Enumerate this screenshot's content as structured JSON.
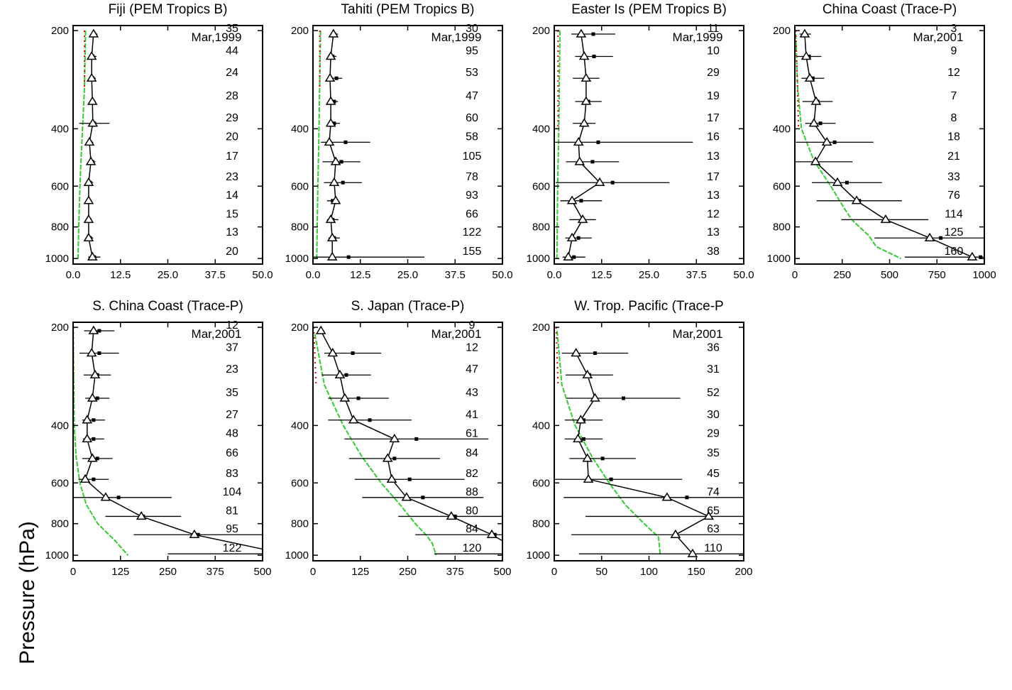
{
  "y_label": "Pressure (hPa)",
  "chart_data": [
    {
      "type": "profile",
      "title": "Fiji (PEM Tropics B)",
      "date": "Mar,1999",
      "log_y": true,
      "ylim": [
        193,
        1040
      ],
      "yticks": [
        200,
        400,
        600,
        800,
        1000
      ],
      "xlim": [
        0,
        50
      ],
      "xticks": [
        {
          "value": 0,
          "label": "0.0"
        },
        {
          "value": 12.5,
          "label": "12.5"
        },
        {
          "value": 25,
          "label": "25.0"
        },
        {
          "value": 37.5,
          "label": "37.5"
        },
        {
          "value": 50,
          "label": "50.0"
        }
      ],
      "levels": [
        205,
        240,
        280,
        330,
        385,
        440,
        505,
        585,
        665,
        760,
        865,
        990
      ],
      "median": [
        5.4,
        4.9,
        4.9,
        5.1,
        5.2,
        4.3,
        4.7,
        4.1,
        4.1,
        4.1,
        4.1,
        5.1
      ],
      "mean": [
        5.6,
        5.2,
        5.2,
        5.2,
        5.6,
        4.5,
        5.1,
        4.5,
        4.3,
        4.3,
        4.5,
        5.6
      ],
      "std": [
        0.8,
        1,
        0.8,
        0.8,
        4,
        0.8,
        0.8,
        0.8,
        0.6,
        0.6,
        0.8,
        1.6
      ],
      "counts": [
        35,
        44,
        24,
        28,
        29,
        20,
        17,
        23,
        14,
        15,
        13,
        20
      ],
      "green": {
        "color": "#33cc33",
        "pressure": [
          200,
          300,
          400,
          500,
          600,
          800,
          1000
        ],
        "values": [
          3.3,
          3,
          2.5,
          2.1,
          1.8,
          1.5,
          1.3
        ]
      },
      "red": {
        "color": "#e00000",
        "pressure": [
          200,
          300
        ],
        "values": [
          3,
          3
        ]
      }
    },
    {
      "type": "profile",
      "title": "Tahiti (PEM Tropics B)",
      "date": "Mar,1999",
      "log_y": true,
      "ylim": [
        193,
        1040
      ],
      "yticks": [
        200,
        400,
        600,
        800,
        1000
      ],
      "xlim": [
        0,
        50
      ],
      "xticks": [
        {
          "value": 0,
          "label": "0.0"
        },
        {
          "value": 12.5,
          "label": "12.5"
        },
        {
          "value": 25,
          "label": "25.0"
        },
        {
          "value": 37.5,
          "label": "37.5"
        },
        {
          "value": 50,
          "label": "50.0"
        }
      ],
      "levels": [
        205,
        240,
        280,
        330,
        385,
        440,
        505,
        585,
        665,
        760,
        865,
        990
      ],
      "median": [
        5.4,
        4.7,
        4.5,
        4.7,
        4.7,
        4.3,
        6,
        5.6,
        6,
        4.7,
        5.1,
        5.1
      ],
      "mean": [
        5.6,
        5.2,
        6.2,
        5.6,
        5.6,
        8.6,
        7.5,
        7.9,
        5.2,
        5.2,
        5.6,
        9.4
      ],
      "std": [
        1,
        1,
        1.5,
        1,
        1.5,
        6.5,
        5,
        5,
        1.5,
        1.5,
        1.5,
        20
      ],
      "counts": [
        30,
        95,
        53,
        47,
        60,
        58,
        105,
        78,
        93,
        66,
        122,
        155
      ],
      "green": {
        "color": "#33cc33",
        "pressure": [
          200,
          400,
          600,
          1000
        ],
        "values": [
          2,
          1.6,
          1.3,
          1
        ]
      },
      "red": {
        "color": "#e00000",
        "pressure": [
          200,
          300
        ],
        "values": [
          1.8,
          1.8
        ]
      }
    },
    {
      "type": "profile",
      "title": "Easter Is (PEM Tropics B)",
      "date": "Mar,1999",
      "log_y": true,
      "ylim": [
        193,
        1040
      ],
      "yticks": [
        200,
        400,
        600,
        800,
        1000
      ],
      "xlim": [
        0,
        50
      ],
      "xticks": [
        {
          "value": 0,
          "label": "0.0"
        },
        {
          "value": 12.5,
          "label": "12.5"
        },
        {
          "value": 25,
          "label": "25.0"
        },
        {
          "value": 37.5,
          "label": "37.5"
        },
        {
          "value": 50,
          "label": "50.0"
        }
      ],
      "levels": [
        205,
        240,
        280,
        330,
        385,
        440,
        505,
        585,
        665,
        760,
        865,
        990
      ],
      "median": [
        7.1,
        7.9,
        8.4,
        8.4,
        7.9,
        6.4,
        6.7,
        12,
        4.7,
        7.5,
        4.7,
        3.7
      ],
      "mean": [
        10.3,
        10.5,
        8.4,
        9,
        7.9,
        11.6,
        10.1,
        15.4,
        7.1,
        7.5,
        6.4,
        5.2
      ],
      "std": [
        5.8,
        5,
        3.5,
        3.5,
        3,
        25,
        7,
        15,
        5.5,
        3.5,
        3.5,
        3
      ],
      "counts": [
        11,
        10,
        29,
        19,
        17,
        16,
        13,
        17,
        13,
        12,
        13,
        38
      ],
      "green": {
        "color": "#33cc33",
        "pressure": [
          200,
          400,
          600,
          1000
        ],
        "values": [
          1.5,
          1.2,
          0.9,
          0.7
        ]
      },
      "red": {
        "color": "#e00000",
        "pressure": [
          200,
          400
        ],
        "values": [
          1,
          1
        ]
      }
    },
    {
      "type": "profile",
      "title": "China Coast (Trace-P)",
      "date": "Mar,2001",
      "log_y": true,
      "ylim": [
        193,
        1040
      ],
      "yticks": [
        200,
        400,
        600,
        800,
        1000
      ],
      "xlim": [
        0,
        1000
      ],
      "xticks": [
        0,
        250,
        500,
        750,
        1000
      ],
      "levels": [
        205,
        240,
        280,
        330,
        385,
        440,
        505,
        585,
        665,
        760,
        865,
        990
      ],
      "median": [
        52,
        60,
        79,
        112,
        101,
        169,
        109,
        225,
        326,
        479,
        712,
        936
      ],
      "mean": [
        55,
        75,
        95,
        120,
        135,
        210,
        105,
        275,
        340,
        475,
        770,
        980
      ],
      "std": [
        30,
        65,
        60,
        80,
        80,
        205,
        200,
        185,
        225,
        230,
        350,
        400
      ],
      "counts": [
        3,
        9,
        12,
        7,
        8,
        18,
        21,
        33,
        76,
        114,
        125,
        160
      ],
      "green": {
        "color": "#33cc33",
        "pressure": [
          205,
          300,
          400,
          500,
          600,
          700,
          760,
          850,
          920,
          1000
        ],
        "values": [
          5,
          15,
          35,
          100,
          190,
          260,
          300,
          390,
          430,
          560
        ]
      },
      "red": {
        "color": "#e00000",
        "pressure": [
          200,
          400
        ],
        "values": [
          5,
          20
        ]
      }
    },
    {
      "type": "profile",
      "title": "S. China Coast (Trace-P)",
      "date": "Mar,2001",
      "log_y": true,
      "ylim": [
        193,
        1040
      ],
      "yticks": [
        200,
        400,
        600,
        800,
        1000
      ],
      "xlim": [
        0,
        500
      ],
      "xticks": [
        0,
        125,
        250,
        375,
        500
      ],
      "levels": [
        205,
        240,
        280,
        330,
        385,
        440,
        505,
        585,
        665,
        760,
        865,
        990
      ],
      "median": [
        54,
        49,
        58,
        51,
        37,
        37,
        51,
        32,
        86,
        180,
        320,
        560
      ],
      "mean": [
        69,
        69,
        64,
        64,
        54,
        54,
        64,
        54,
        120,
        185,
        330,
        600
      ],
      "std": [
        40,
        52,
        36,
        32,
        30,
        28,
        40,
        40,
        140,
        100,
        170,
        350
      ],
      "counts": [
        12,
        37,
        23,
        35,
        27,
        48,
        66,
        83,
        104,
        81,
        95,
        122
      ],
      "green": {
        "color": "#33cc33",
        "pressure": [
          200,
          400,
          500,
          600,
          700,
          800,
          900,
          1000
        ],
        "values": [
          0,
          3,
          8,
          18,
          35,
          65,
          110,
          145
        ]
      },
      "red": {
        "color": "#e00000",
        "pressure": [
          200,
          350
        ],
        "values": [
          0.5,
          1
        ]
      }
    },
    {
      "type": "profile",
      "title": "S. Japan (Trace-P)",
      "date": "Mar,2001",
      "log_y": true,
      "ylim": [
        193,
        1040
      ],
      "yticks": [
        200,
        400,
        600,
        800,
        1000
      ],
      "xlim": [
        0,
        500
      ],
      "xticks": [
        0,
        125,
        250,
        375,
        500
      ],
      "levels": [
        205,
        240,
        280,
        330,
        385,
        440,
        505,
        585,
        665,
        760,
        865,
        990
      ],
      "median": [
        21,
        52,
        71,
        84,
        107,
        215,
        197,
        208,
        247,
        365,
        472,
        560
      ],
      "mean": [
        21,
        105,
        88,
        120,
        150,
        273,
        215,
        255,
        290,
        375,
        480,
        620
      ],
      "std": [
        5,
        75,
        65,
        80,
        110,
        190,
        120,
        145,
        160,
        150,
        210,
        300
      ],
      "counts": [
        9,
        12,
        47,
        43,
        41,
        61,
        84,
        82,
        88,
        80,
        84,
        120
      ],
      "green": {
        "color": "#33cc33",
        "pressure": [
          210,
          300,
          400,
          500,
          600,
          700,
          800,
          870,
          920,
          1000
        ],
        "values": [
          5,
          30,
          80,
          130,
          180,
          230,
          270,
          300,
          315,
          325
        ]
      },
      "red": {
        "color": "#e00000",
        "pressure": [
          200,
          300
        ],
        "values": [
          2,
          8
        ]
      }
    },
    {
      "type": "profile",
      "title": "W. Trop. Pacific (Trace-P",
      "date": "Mar,2001",
      "log_y": true,
      "ylim": [
        193,
        1040
      ],
      "yticks": [
        200,
        400,
        600,
        800,
        1000
      ],
      "xlim": [
        0,
        200
      ],
      "xticks": [
        0,
        50,
        100,
        150,
        200
      ],
      "levels": [
        205,
        240,
        280,
        330,
        385,
        440,
        505,
        585,
        665,
        760,
        865,
        990
      ],
      "median": [
        null,
        23,
        35,
        43,
        28,
        25,
        35,
        36,
        119,
        163,
        128,
        146
      ],
      "mean": [
        null,
        43,
        37,
        73,
        31,
        31,
        51,
        60,
        140,
        163,
        128,
        146
      ],
      "std": [
        null,
        35,
        25,
        60,
        20,
        20,
        35,
        75,
        130,
        130,
        110,
        120
      ],
      "counts": [
        null,
        36,
        31,
        52,
        30,
        29,
        35,
        45,
        74,
        65,
        63,
        110
      ],
      "green": {
        "color": "#33cc33",
        "pressure": [
          205,
          300,
          400,
          500,
          600,
          700,
          800,
          880,
          1000
        ],
        "values": [
          3,
          8,
          22,
          40,
          58,
          75,
          95,
          110,
          112
        ]
      },
      "red": {
        "color": "#e00000",
        "pressure": [
          200,
          300
        ],
        "values": [
          2,
          4
        ]
      }
    }
  ]
}
